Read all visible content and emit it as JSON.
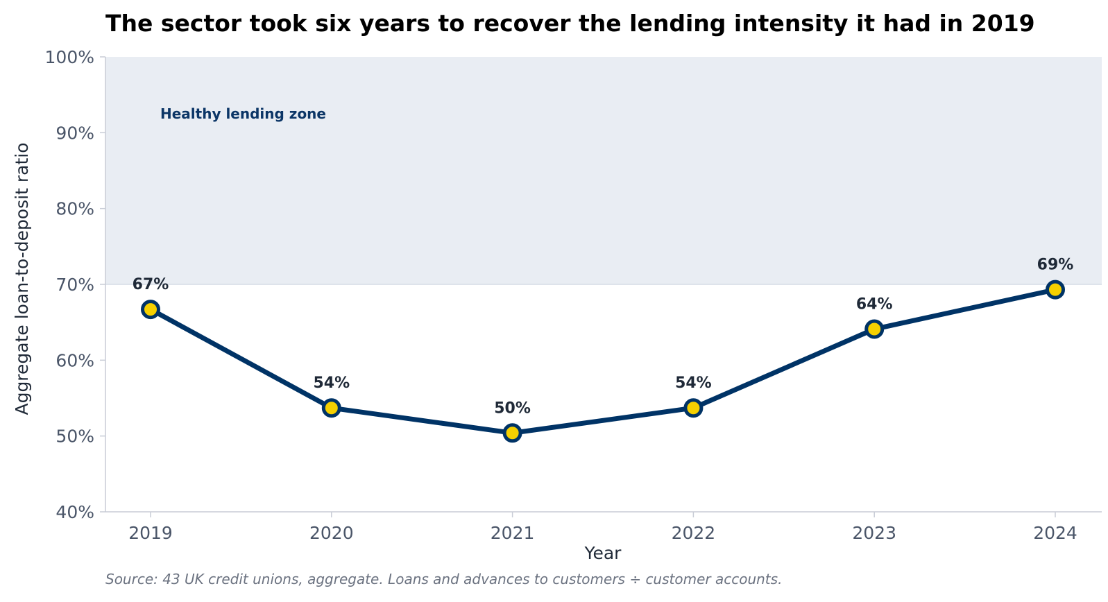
{
  "chart_data": {
    "type": "line",
    "title": "The sector took six years to recover the lending intensity it had in 2019",
    "xlabel": "Year",
    "ylabel": "Aggregate loan-to-deposit ratio",
    "categories": [
      "2019",
      "2020",
      "2021",
      "2022",
      "2023",
      "2024"
    ],
    "series": [
      {
        "values": [
          0.667,
          0.537,
          0.504,
          0.537,
          0.641,
          0.693
        ],
        "data_labels": [
          "67%",
          "54%",
          "50%",
          "54%",
          "64%",
          "69%"
        ]
      }
    ],
    "ylim": [
      0.4,
      1.0
    ],
    "yticks": [
      0.4,
      0.5,
      0.6,
      0.7,
      0.8,
      0.9,
      1.0
    ],
    "ytick_labels": [
      "40%",
      "50%",
      "60%",
      "70%",
      "80%",
      "90%",
      "100%"
    ],
    "shaded_band": {
      "from": 0.7,
      "to": 1.0,
      "label": "Healthy lending zone"
    },
    "grid": false,
    "colors": {
      "line": "#003366",
      "marker_fill": "#f5d000",
      "band": "#e9edf3",
      "axis": "#c8ccd6"
    },
    "source": "Source: 43 UK credit unions, aggregate. Loans and advances to customers ÷ customer accounts."
  }
}
